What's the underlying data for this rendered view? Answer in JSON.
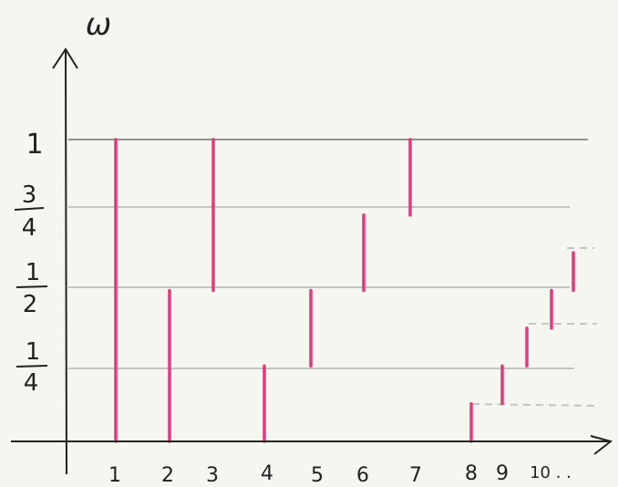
{
  "colors": {
    "background": "#f6f6f1",
    "axis": "#222222",
    "top_line": "#8f8f8f",
    "grid": "#c4c4c4",
    "dashed": "#c4c4c4",
    "highlight": "#e33a7c"
  },
  "axis": {
    "y_symbol": "ω",
    "y_labels": [
      {
        "value": 1,
        "text": "1"
      },
      {
        "value": 0.75,
        "num": "3",
        "den": "4"
      },
      {
        "value": 0.5,
        "num": "1",
        "den": "2"
      },
      {
        "value": 0.25,
        "num": "1",
        "den": "4"
      }
    ],
    "x_labels": [
      "1",
      "2",
      "3",
      "4",
      "5",
      "6",
      "7",
      "8",
      "9",
      "10 . ."
    ]
  },
  "intervals": [
    {
      "n": 1,
      "on": [
        0,
        1
      ]
    },
    {
      "n": 2,
      "on": [
        0,
        0.5
      ]
    },
    {
      "n": 3,
      "on": [
        0.5,
        1
      ]
    },
    {
      "n": 4,
      "on": [
        0,
        0.25
      ]
    },
    {
      "n": 5,
      "on": [
        0.25,
        0.5
      ]
    },
    {
      "n": 6,
      "on": [
        0.5,
        0.75
      ]
    },
    {
      "n": 7,
      "on": [
        0.75,
        1
      ]
    },
    {
      "n": 8,
      "on": [
        0,
        0.125
      ]
    },
    {
      "n": 9,
      "on": [
        0.125,
        0.25
      ]
    },
    {
      "n": 10,
      "on": [
        0.25,
        0.375
      ]
    },
    {
      "n": 11,
      "on": [
        0.375,
        0.5
      ]
    },
    {
      "n": 12,
      "on": [
        0.5,
        0.625
      ]
    }
  ]
}
